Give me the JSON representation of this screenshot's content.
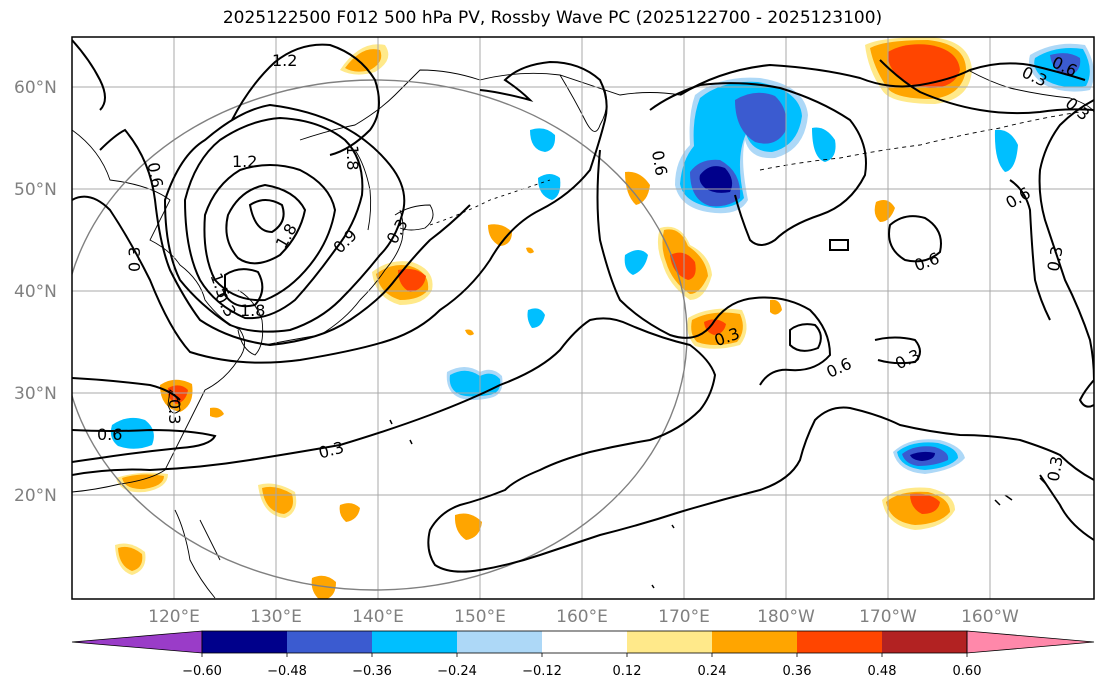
{
  "title": "2025122500 F012 500 hPa PV, Rossby Wave PC (2025122700 - 2025123100)",
  "map": {
    "lat_labels": [
      "60°N",
      "50°N",
      "40°N",
      "30°N",
      "20°N"
    ],
    "lon_labels": [
      "120°E",
      "130°E",
      "140°E",
      "150°E",
      "160°E",
      "170°E",
      "180°W",
      "170°W",
      "160°W"
    ],
    "contour_labels": [
      "1.2",
      "1.2",
      "0.6",
      "0.3",
      "1.5",
      "1.8",
      "1.8",
      "0.9",
      "1.8",
      "0.6",
      "0.3",
      "0.6",
      "0.3",
      "0.3",
      "0.6",
      "0.3",
      "0.6",
      "0.6",
      "0.3",
      "0.3",
      "0.3",
      "0.3",
      "0.6",
      "0.3",
      "0.3"
    ]
  },
  "colorbar": {
    "colors": [
      "#9a3cc8",
      "#00008b",
      "#3b5bd0",
      "#00bfff",
      "#add8f7",
      "#ffffff",
      "#ffe98a",
      "#ffa500",
      "#ff4500",
      "#b22222",
      "#ff88aa"
    ],
    "tick_labels": [
      "−0.60",
      "−0.48",
      "−0.36",
      "−0.24",
      "−0.12",
      "0.12",
      "0.24",
      "0.36",
      "0.48",
      "0.60"
    ]
  }
}
